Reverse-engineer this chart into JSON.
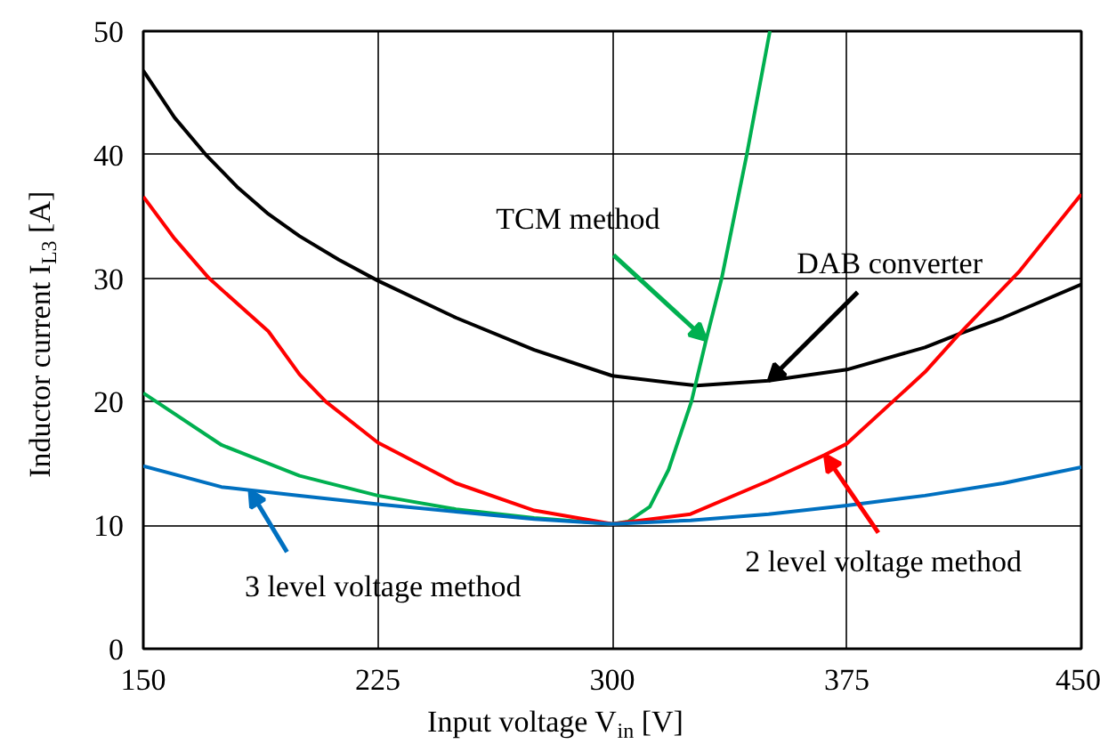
{
  "chart_data": {
    "type": "line",
    "xlabel": "Input voltage V$_{in}$ [V]",
    "ylabel": "Inductor current I$_{L3}$ [A]",
    "xlim": [
      150,
      450
    ],
    "ylim": [
      0,
      50
    ],
    "xticks": [
      150,
      225,
      300,
      375,
      450
    ],
    "yticks": [
      0,
      10,
      20,
      30,
      40,
      50
    ],
    "grid": true,
    "marker": "none",
    "line_style": "solid",
    "series": [
      {
        "color": "#000000",
        "x": [
          150,
          160,
          170,
          180,
          190,
          200,
          212.5,
          225,
          250,
          275,
          300,
          327,
          350,
          375,
          400,
          411,
          425,
          450
        ],
        "values": [
          46.8,
          43.0,
          40.0,
          37.4,
          35.2,
          33.4,
          31.5,
          29.8,
          26.8,
          24.2,
          22.1,
          21.3,
          21.7,
          22.6,
          24.4,
          25.5,
          26.8,
          29.5
        ]
      },
      {
        "color": "#00b050",
        "x": [
          150,
          175,
          200,
          225,
          250,
          275,
          300,
          305,
          312,
          318,
          325.3,
          330,
          335,
          343,
          350.4
        ],
        "values": [
          20.7,
          16.5,
          14.0,
          12.4,
          11.3,
          10.6,
          10.1,
          10.3,
          11.5,
          14.5,
          20.0,
          25.0,
          30.0,
          40.0,
          50.0
        ]
      },
      {
        "color": "#ff0000",
        "x": [
          150,
          160,
          171,
          190,
          200,
          208.4,
          225,
          250,
          275,
          300,
          325,
          350,
          368,
          375,
          400,
          411,
          430,
          450
        ],
        "values": [
          36.6,
          33.2,
          30.0,
          25.7,
          22.2,
          20.0,
          16.7,
          13.4,
          11.2,
          10.1,
          10.9,
          13.6,
          15.7,
          16.6,
          22.4,
          25.5,
          30.5,
          36.8
        ]
      },
      {
        "color": "#0070c0",
        "x": [
          150,
          175,
          200,
          225,
          250,
          275,
          300,
          325,
          350,
          375,
          400,
          425,
          450
        ],
        "values": [
          14.8,
          13.1,
          12.4,
          11.7,
          11.1,
          10.5,
          10.1,
          10.4,
          10.9,
          11.6,
          12.4,
          13.4,
          14.7
        ]
      }
    ],
    "annotations": [
      {
        "text": "DAB converter",
        "x": 350,
        "y": 21.7
      },
      {
        "text": "TCM method",
        "x": 330,
        "y": 25.0
      },
      {
        "text": "2 level voltage  method",
        "x": 368,
        "y": 15.7
      },
      {
        "text": "3 level voltage  method",
        "x": 184,
        "y": 12.85
      }
    ]
  }
}
